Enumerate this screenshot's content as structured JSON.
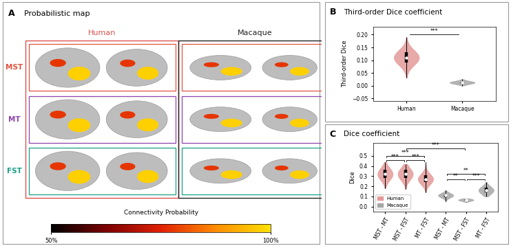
{
  "chart_data": [
    {
      "type": "surface_map",
      "panel": "A",
      "title": "Probabilistic map",
      "columns": [
        {
          "name": "Human",
          "color": "#d9534f"
        },
        {
          "name": "Macaque",
          "color": "#222222"
        }
      ],
      "rows": [
        {
          "name": "MST",
          "color": "#e0523f"
        },
        {
          "name": "MT",
          "color": "#8e44ad"
        },
        {
          "name": "FST",
          "color": "#16a085"
        }
      ],
      "colorbar": {
        "label": "Connectivity Probability",
        "range": [
          50,
          100
        ],
        "ticks": [
          {
            "value": 50,
            "label": "50%"
          },
          {
            "value": 100,
            "label": "100%"
          }
        ]
      }
    },
    {
      "type": "violin",
      "panel": "B",
      "title": "Third-order Dice coefficient",
      "y_label": "Third-order Dice",
      "categories": [
        "Human",
        "Macaque"
      ],
      "values": [
        {
          "min": 0.03,
          "q1": 0.09,
          "median": 0.11,
          "q3": 0.13,
          "max": 0.19
        },
        {
          "min": 0.0,
          "q1": 0.008,
          "median": 0.012,
          "q3": 0.016,
          "max": 0.025
        }
      ],
      "colors": [
        "#e59a9a",
        "#a6a6a6"
      ],
      "ylim": [
        -0.06,
        0.23
      ],
      "yticks": [
        {
          "value": -0.05,
          "label": "−0.05"
        },
        {
          "value": 0,
          "label": "0.00"
        },
        0.05,
        {
          "value": 0.1,
          "label": "0.10"
        },
        0.15,
        {
          "value": 0.2,
          "label": "0.20"
        }
      ],
      "significance": [
        {
          "between": [
            0,
            1
          ],
          "y": 0.2,
          "label": "***"
        }
      ]
    },
    {
      "type": "violin",
      "panel": "C",
      "title": "Dice coefficient",
      "y_label": "Dice",
      "categories": [
        "MST - MT",
        "MST - FST",
        "MT - FST",
        "MST - MT",
        "MST - FST",
        "MT - FST"
      ],
      "series": [
        {
          "name": "Human",
          "color": "#e59a9a",
          "values": [
            {
              "min": 0.18,
              "q1": 0.28,
              "median": 0.32,
              "q3": 0.36,
              "max": 0.44
            },
            {
              "min": 0.17,
              "q1": 0.28,
              "median": 0.32,
              "q3": 0.36,
              "max": 0.42
            },
            {
              "min": 0.14,
              "q1": 0.24,
              "median": 0.27,
              "q3": 0.31,
              "max": 0.44
            },
            null,
            null,
            null
          ]
        },
        {
          "name": "Macaque",
          "color": "#a6a6a6",
          "values": [
            null,
            null,
            null,
            {
              "min": 0.05,
              "q1": 0.09,
              "median": 0.11,
              "q3": 0.12,
              "max": 0.16
            },
            {
              "min": 0.045,
              "q1": 0.055,
              "median": 0.065,
              "q3": 0.07,
              "max": 0.08
            },
            {
              "min": 0.1,
              "q1": 0.14,
              "median": 0.16,
              "q3": 0.19,
              "max": 0.24
            }
          ]
        }
      ],
      "ylim": [
        -0.05,
        0.63
      ],
      "yticks": [
        0.0,
        0.1,
        0.2,
        0.3,
        0.4,
        0.5
      ],
      "legend": "lower left",
      "significance": [
        {
          "between": [
            0,
            2
          ],
          "y": 0.5,
          "label": "***"
        },
        {
          "between": [
            0,
            1
          ],
          "y": 0.455,
          "label": "***"
        },
        {
          "between": [
            1,
            2
          ],
          "y": 0.455,
          "label": "***"
        },
        {
          "between": [
            3,
            5
          ],
          "y": 0.32,
          "label": "**"
        },
        {
          "between": [
            3,
            4
          ],
          "y": 0.27,
          "label": "**"
        },
        {
          "between": [
            4,
            5
          ],
          "y": 0.27,
          "label": "***"
        },
        {
          "between": [
            1,
            4
          ],
          "y": 0.57,
          "label": "***"
        }
      ]
    }
  ]
}
